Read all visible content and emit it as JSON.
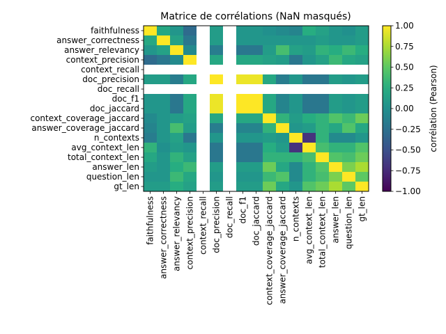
{
  "chart_data": {
    "type": "heatmap",
    "title": "Matrice de corrélations (NaN masqués)",
    "labels": [
      "faithfulness",
      "answer_correctness",
      "answer_relevancy",
      "context_precision",
      "context_recall",
      "doc_precision",
      "doc_recall",
      "doc_f1",
      "doc_jaccard",
      "context_coverage_jaccard",
      "answer_coverage_jaccard",
      "n_contexts",
      "avg_context_len",
      "total_context_len",
      "answer_len",
      "question_len",
      "gt_len"
    ],
    "colorbar": {
      "label": "corrélation (Pearson)",
      "range": [
        -1.0,
        1.0
      ],
      "ticks": [
        "1.00",
        "0.75",
        "0.50",
        "0.25",
        "0.00",
        "−0.25",
        "−0.50",
        "−0.75",
        "−1.00"
      ],
      "tick_values": [
        1.0,
        0.75,
        0.5,
        0.25,
        0.0,
        -0.25,
        -0.5,
        -0.75,
        -1.0
      ],
      "colormap": "viridis"
    },
    "nan_rows_cols": [
      "context_recall",
      "doc_recall"
    ],
    "matrix": [
      [
        1.0,
        0.2,
        0.05,
        -0.3,
        null,
        0.1,
        null,
        0.05,
        0.05,
        0.0,
        -0.05,
        -0.1,
        0.25,
        0.15,
        0.05,
        0.0,
        0.1
      ],
      [
        0.2,
        1.0,
        0.15,
        -0.2,
        null,
        0.1,
        null,
        0.05,
        0.05,
        0.05,
        0.05,
        0.05,
        0.05,
        0.1,
        0.05,
        0.05,
        0.1
      ],
      [
        0.05,
        0.15,
        1.0,
        -0.05,
        null,
        -0.15,
        null,
        -0.2,
        -0.2,
        0.1,
        0.4,
        0.15,
        0.1,
        0.3,
        0.25,
        0.35,
        0.25
      ],
      [
        -0.3,
        -0.2,
        -0.05,
        1.0,
        null,
        0.2,
        null,
        0.2,
        0.2,
        0.15,
        0.1,
        -0.2,
        0.05,
        0.15,
        0.35,
        0.2,
        0.15
      ],
      [
        null,
        null,
        null,
        null,
        null,
        null,
        null,
        null,
        null,
        null,
        null,
        null,
        null,
        null,
        null,
        null,
        null
      ],
      [
        0.1,
        0.1,
        -0.15,
        0.2,
        null,
        1.0,
        null,
        0.95,
        0.95,
        0.2,
        -0.15,
        0.05,
        -0.2,
        -0.2,
        0.1,
        0.05,
        0.1
      ],
      [
        null,
        null,
        null,
        null,
        null,
        null,
        null,
        null,
        null,
        null,
        null,
        null,
        null,
        null,
        null,
        null,
        null
      ],
      [
        0.05,
        0.05,
        -0.2,
        0.2,
        null,
        0.95,
        null,
        1.0,
        1.0,
        0.2,
        -0.1,
        0.05,
        -0.2,
        -0.2,
        0.1,
        0.05,
        0.1
      ],
      [
        0.05,
        0.05,
        -0.2,
        0.2,
        null,
        0.95,
        null,
        1.0,
        1.0,
        0.2,
        -0.1,
        0.05,
        -0.2,
        -0.2,
        0.1,
        0.05,
        0.1
      ],
      [
        -0.05,
        0.05,
        0.1,
        0.15,
        null,
        0.2,
        null,
        0.2,
        0.2,
        1.0,
        0.3,
        0.1,
        0.25,
        0.3,
        0.45,
        0.35,
        0.55
      ],
      [
        -0.1,
        0.05,
        0.4,
        0.1,
        null,
        -0.15,
        null,
        -0.1,
        -0.1,
        0.3,
        1.0,
        0.05,
        0.1,
        0.3,
        0.2,
        0.45,
        0.2
      ],
      [
        -0.15,
        0.05,
        0.15,
        -0.2,
        null,
        0.05,
        null,
        0.05,
        0.05,
        0.1,
        0.05,
        1.0,
        -0.7,
        0.3,
        -0.05,
        -0.05,
        0.05
      ],
      [
        0.3,
        0.0,
        0.1,
        0.05,
        null,
        -0.2,
        null,
        -0.2,
        -0.2,
        0.25,
        0.1,
        -0.7,
        1.0,
        0.4,
        0.3,
        0.3,
        0.45
      ],
      [
        0.2,
        0.05,
        0.3,
        0.15,
        null,
        -0.2,
        null,
        -0.2,
        -0.2,
        0.3,
        0.3,
        0.3,
        0.4,
        1.0,
        0.45,
        0.4,
        0.55
      ],
      [
        0.1,
        0.05,
        0.25,
        0.35,
        null,
        0.1,
        null,
        0.1,
        0.1,
        0.55,
        0.2,
        -0.05,
        0.3,
        0.45,
        1.0,
        0.6,
        0.75
      ],
      [
        0.05,
        0.05,
        0.35,
        0.2,
        null,
        0.05,
        null,
        0.05,
        0.05,
        0.35,
        0.45,
        -0.05,
        0.3,
        0.4,
        0.6,
        1.0,
        0.5
      ],
      [
        0.1,
        0.1,
        0.25,
        0.15,
        null,
        0.1,
        null,
        0.1,
        0.1,
        0.55,
        0.2,
        0.05,
        0.45,
        0.55,
        0.75,
        0.5,
        1.0
      ]
    ]
  }
}
